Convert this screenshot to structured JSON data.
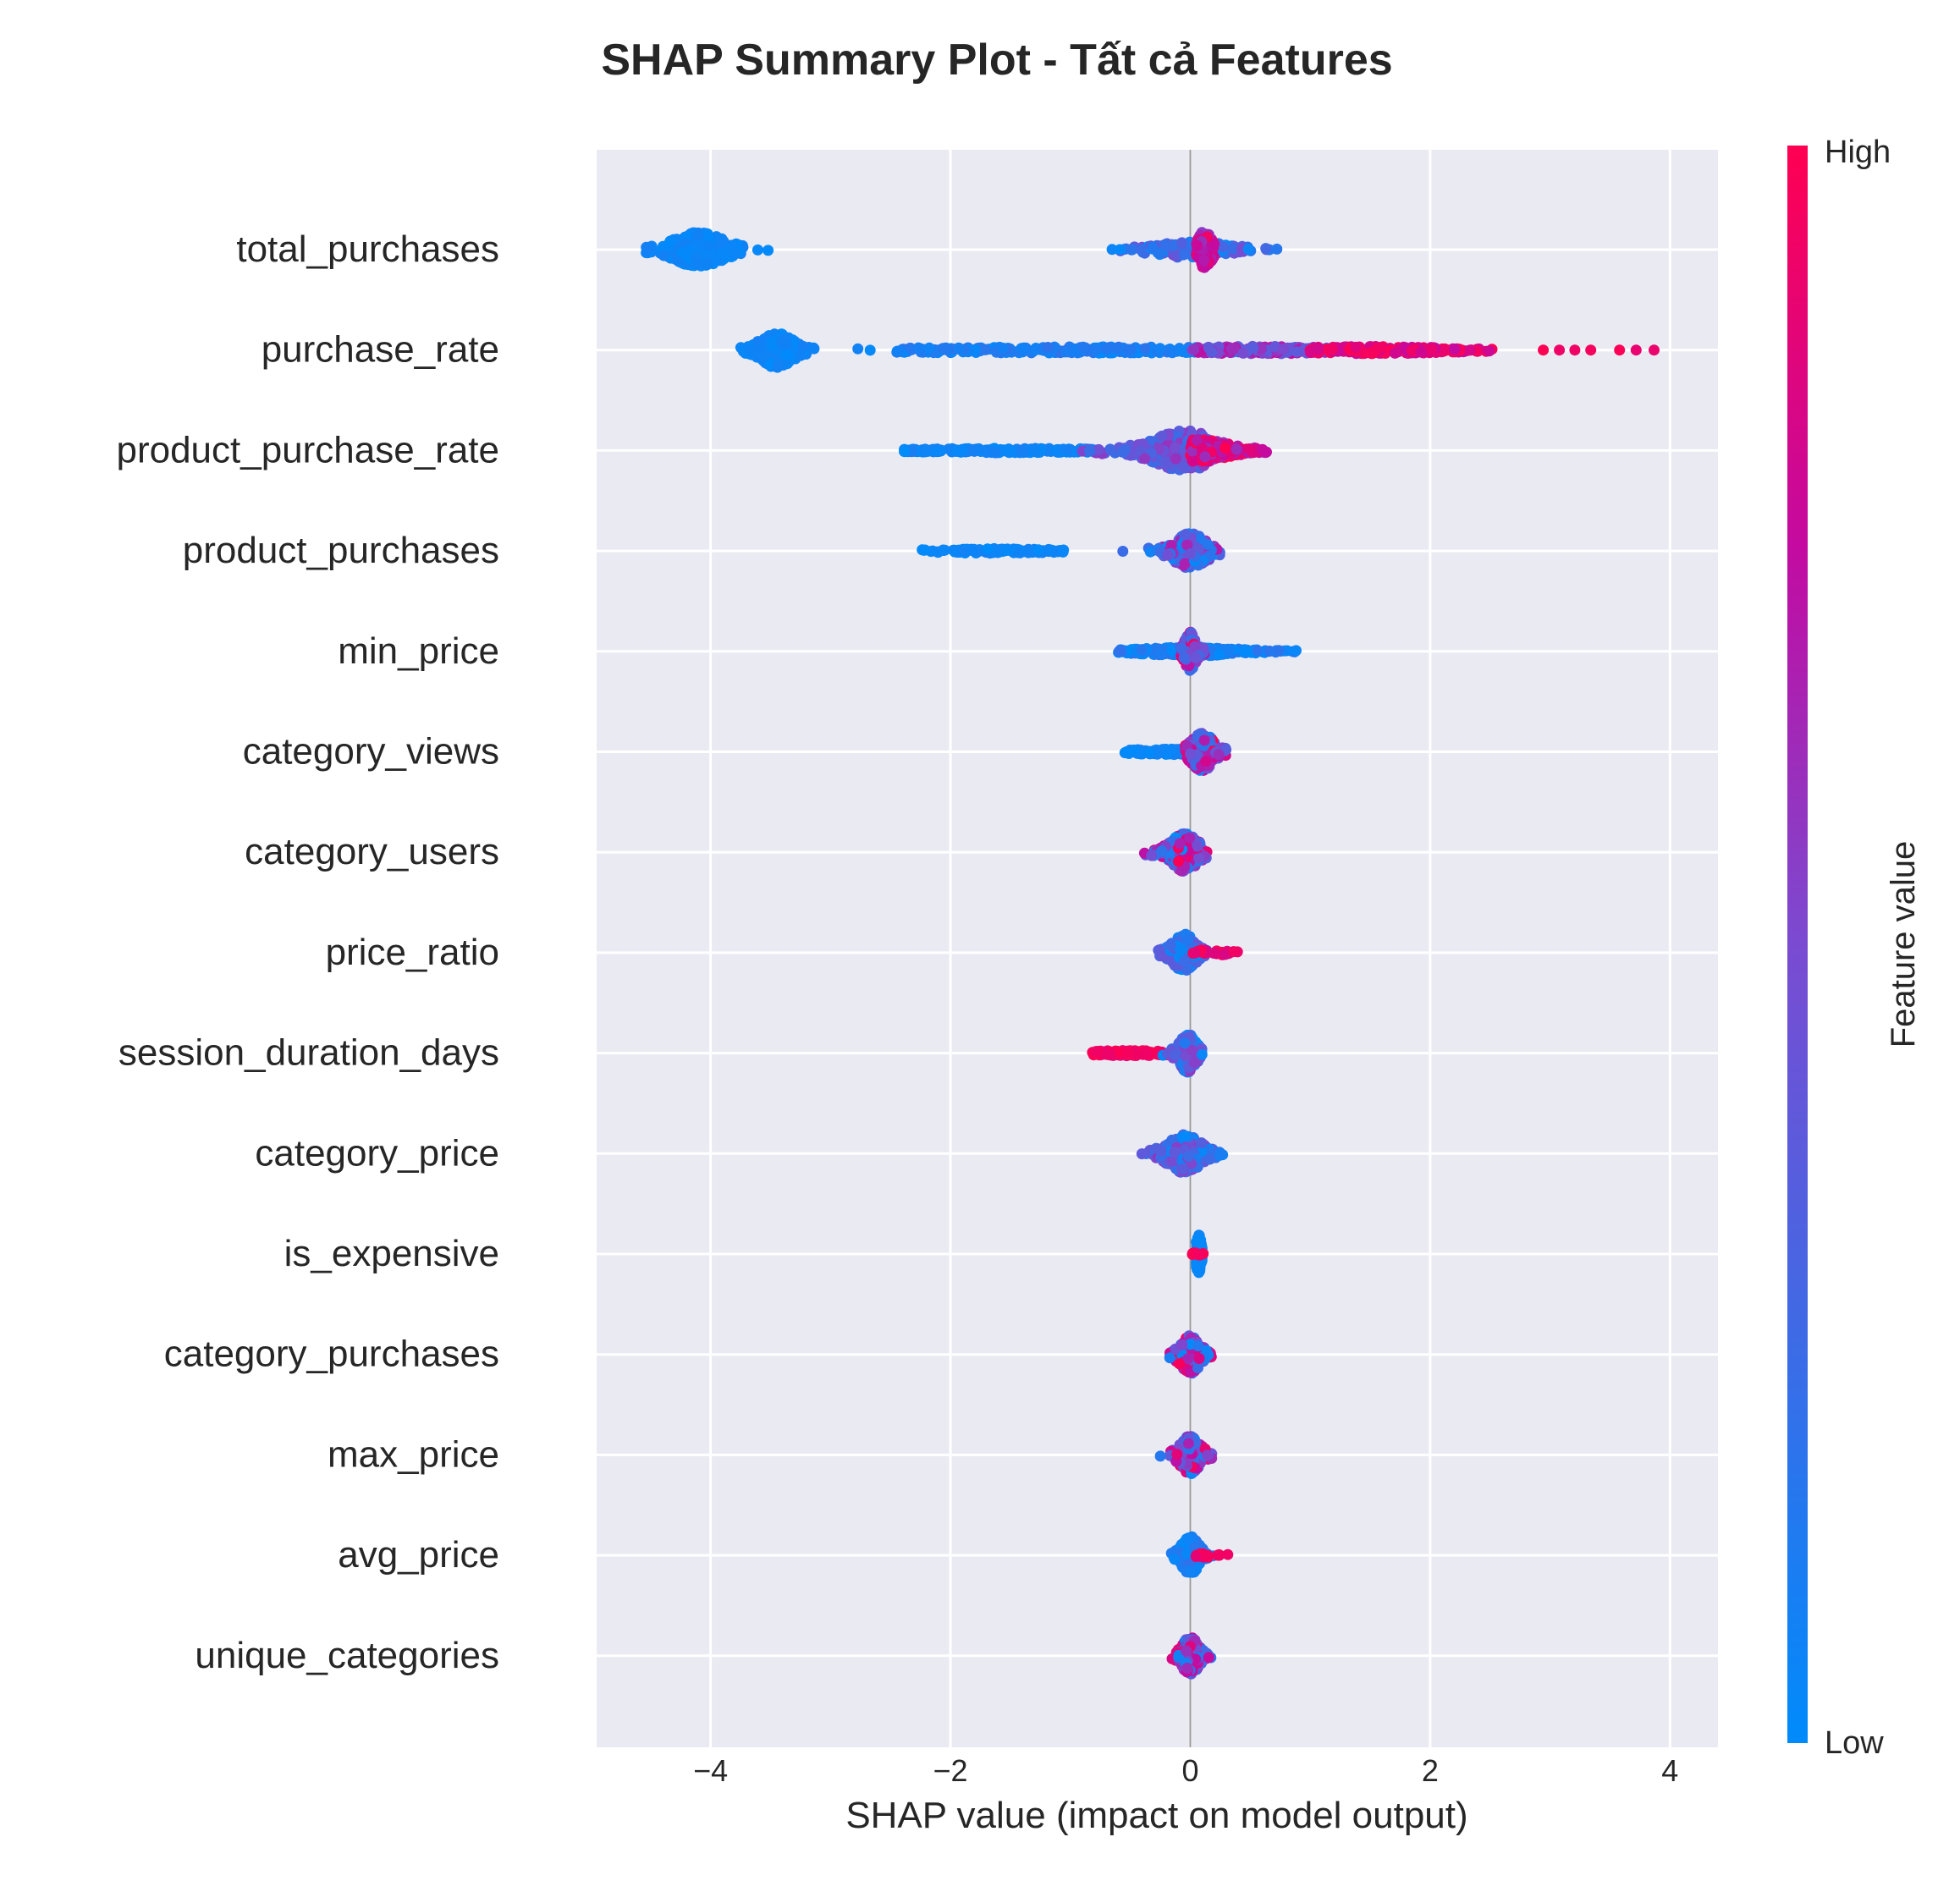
{
  "chart_data": {
    "type": "scatter",
    "subtype": "shap-beeswarm",
    "title": "SHAP Summary Plot - Tất cả Features",
    "xlabel": "SHAP value (impact on model output)",
    "ylabel": "",
    "xlim": [
      -4.95,
      4.4
    ],
    "x_ticks": [
      -4,
      -2,
      0,
      2,
      4
    ],
    "x_tick_labels": [
      "−4",
      "−2",
      "0",
      "2",
      "4"
    ],
    "grid": true,
    "background": "#eaeaf2",
    "colorbar": {
      "label": "Feature value",
      "high_label": "High",
      "low_label": "Low",
      "low_color": "#008bfb",
      "high_color": "#ff0052"
    },
    "features": [
      {
        "name": "total_purchases",
        "clusters": [
          {
            "x0": -4.55,
            "x1": -3.45,
            "peak": -4.1,
            "spread": 0.18,
            "h": 0.38,
            "n": 340,
            "cmin": 0.0,
            "cmax": 0.08
          },
          {
            "x0": -0.72,
            "x1": 1.1,
            "peak": 0.0,
            "spread": 0.28,
            "h": 0.18,
            "n": 160,
            "cmin": 0.0,
            "cmax": 0.5
          },
          {
            "x0": 0.05,
            "x1": 0.2,
            "peak": 0.12,
            "spread": 0.05,
            "h": 0.42,
            "n": 120,
            "cmin": 0.55,
            "cmax": 1.0
          }
        ]
      },
      {
        "name": "purchase_rate",
        "clusters": [
          {
            "x0": -3.75,
            "x1": -2.45,
            "peak": -3.45,
            "spread": 0.12,
            "h": 0.38,
            "n": 320,
            "cmin": 0.0,
            "cmax": 0.08
          },
          {
            "x0": -2.45,
            "x1": 0.4,
            "peak": -1.0,
            "spread": 1.5,
            "h": 0.07,
            "n": 260,
            "cmin": 0.0,
            "cmax": 0.2
          },
          {
            "x0": 0.0,
            "x1": 1.2,
            "peak": 0.6,
            "spread": 0.6,
            "h": 0.08,
            "n": 160,
            "cmin": 0.35,
            "cmax": 0.75
          },
          {
            "x0": 1.0,
            "x1": 2.55,
            "peak": 1.5,
            "spread": 0.6,
            "h": 0.08,
            "n": 180,
            "cmin": 0.75,
            "cmax": 1.0
          },
          {
            "x0": 2.7,
            "x1": 4.0,
            "peak": 3.5,
            "spread": 1.0,
            "h": 0.0,
            "n": 7,
            "cmin": 0.9,
            "cmax": 1.0
          }
        ]
      },
      {
        "name": "product_purchase_rate",
        "clusters": [
          {
            "x0": -2.4,
            "x1": -0.8,
            "peak": -1.5,
            "spread": 0.8,
            "h": 0.05,
            "n": 180,
            "cmin": 0.0,
            "cmax": 0.1
          },
          {
            "x0": -0.9,
            "x1": 0.15,
            "peak": -0.05,
            "spread": 0.22,
            "h": 0.45,
            "n": 300,
            "cmin": 0.2,
            "cmax": 0.6
          },
          {
            "x0": 0.0,
            "x1": 0.65,
            "peak": 0.1,
            "spread": 0.2,
            "h": 0.25,
            "n": 220,
            "cmin": 0.6,
            "cmax": 1.0
          }
        ]
      },
      {
        "name": "product_purchases",
        "clusters": [
          {
            "x0": -2.25,
            "x1": -1.05,
            "peak": -1.7,
            "spread": 0.5,
            "h": 0.05,
            "n": 100,
            "cmin": 0.0,
            "cmax": 0.08
          },
          {
            "x0": -0.6,
            "x1": 0.25,
            "peak": 0.0,
            "spread": 0.12,
            "h": 0.38,
            "n": 220,
            "cmin": 0.0,
            "cmax": 0.7
          }
        ]
      },
      {
        "name": "min_price",
        "clusters": [
          {
            "x0": -0.6,
            "x1": 0.9,
            "peak": 0.0,
            "spread": 0.35,
            "h": 0.1,
            "n": 260,
            "cmin": 0.0,
            "cmax": 0.2
          },
          {
            "x0": -0.08,
            "x1": 0.12,
            "peak": 0.0,
            "spread": 0.04,
            "h": 0.42,
            "n": 120,
            "cmin": 0.2,
            "cmax": 1.0
          }
        ]
      },
      {
        "name": "category_views",
        "clusters": [
          {
            "x0": -0.55,
            "x1": 0.0,
            "peak": -0.2,
            "spread": 0.3,
            "h": 0.06,
            "n": 100,
            "cmin": 0.0,
            "cmax": 0.1
          },
          {
            "x0": -0.05,
            "x1": 0.3,
            "peak": 0.1,
            "spread": 0.08,
            "h": 0.42,
            "n": 260,
            "cmin": 0.1,
            "cmax": 1.0
          }
        ]
      },
      {
        "name": "category_users",
        "clusters": [
          {
            "x0": -0.4,
            "x1": 0.15,
            "peak": -0.05,
            "spread": 0.1,
            "h": 0.42,
            "n": 240,
            "cmin": 0.0,
            "cmax": 1.0
          }
        ]
      },
      {
        "name": "price_ratio",
        "clusters": [
          {
            "x0": -0.3,
            "x1": 0.15,
            "peak": -0.05,
            "spread": 0.08,
            "h": 0.42,
            "n": 260,
            "cmin": 0.0,
            "cmax": 0.45
          },
          {
            "x0": 0.0,
            "x1": 0.4,
            "peak": 0.15,
            "spread": 0.15,
            "h": 0.06,
            "n": 30,
            "cmin": 0.8,
            "cmax": 1.0
          }
        ]
      },
      {
        "name": "session_duration_days",
        "clusters": [
          {
            "x0": -0.82,
            "x1": -0.15,
            "peak": -0.5,
            "spread": 0.3,
            "h": 0.06,
            "n": 130,
            "cmin": 0.9,
            "cmax": 1.0
          },
          {
            "x0": -0.25,
            "x1": 0.1,
            "peak": -0.02,
            "spread": 0.06,
            "h": 0.42,
            "n": 220,
            "cmin": 0.0,
            "cmax": 0.6
          }
        ]
      },
      {
        "name": "category_price",
        "clusters": [
          {
            "x0": -0.5,
            "x1": 0.3,
            "peak": -0.05,
            "spread": 0.12,
            "h": 0.42,
            "n": 280,
            "cmin": 0.0,
            "cmax": 0.6
          }
        ]
      },
      {
        "name": "is_expensive",
        "clusters": [
          {
            "x0": 0.05,
            "x1": 0.1,
            "peak": 0.07,
            "spread": 0.02,
            "h": 0.42,
            "n": 90,
            "cmin": 0.0,
            "cmax": 0.05
          },
          {
            "x0": 0.0,
            "x1": 0.12,
            "peak": 0.06,
            "spread": 0.04,
            "h": 0.03,
            "n": 10,
            "cmin": 0.9,
            "cmax": 1.0
          }
        ]
      },
      {
        "name": "category_purchases",
        "clusters": [
          {
            "x0": -0.25,
            "x1": 0.2,
            "peak": 0.0,
            "spread": 0.07,
            "h": 0.42,
            "n": 240,
            "cmin": 0.0,
            "cmax": 1.0
          }
        ]
      },
      {
        "name": "max_price",
        "clusters": [
          {
            "x0": -0.3,
            "x1": 0.35,
            "peak": 0.0,
            "spread": 0.07,
            "h": 0.42,
            "n": 240,
            "cmin": 0.0,
            "cmax": 1.0
          }
        ]
      },
      {
        "name": "avg_price",
        "clusters": [
          {
            "x0": -0.38,
            "x1": 0.35,
            "peak": 0.0,
            "spread": 0.06,
            "h": 0.42,
            "n": 220,
            "cmin": 0.0,
            "cmax": 0.2
          },
          {
            "x0": 0.0,
            "x1": 0.35,
            "peak": 0.15,
            "spread": 0.12,
            "h": 0.05,
            "n": 20,
            "cmin": 0.85,
            "cmax": 1.0
          }
        ]
      },
      {
        "name": "unique_categories",
        "clusters": [
          {
            "x0": -0.25,
            "x1": 0.25,
            "peak": 0.0,
            "spread": 0.06,
            "h": 0.42,
            "n": 240,
            "cmin": 0.0,
            "cmax": 1.0
          }
        ]
      }
    ]
  }
}
